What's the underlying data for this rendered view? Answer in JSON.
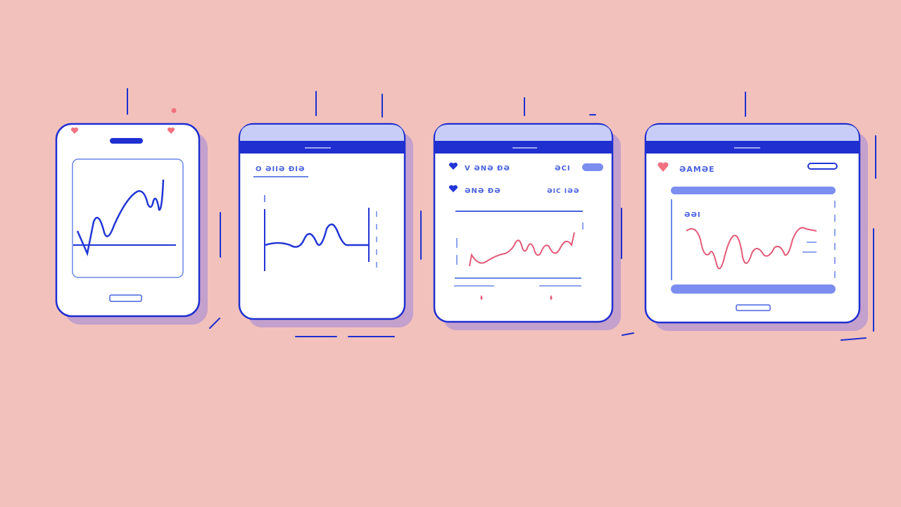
{
  "colors": {
    "background": "#f2c1bc",
    "outline": "#1f2fd0",
    "header_light": "#c8cdf7",
    "accent_light": "#7b8ef0",
    "shadow": "#c4a0cc",
    "line_blue": "#2236d6",
    "line_red": "#e35a78",
    "heart_red": "#f2727f"
  },
  "screen2": {
    "heading": "O ƏIIƏ ĐIƏ"
  },
  "screen3": {
    "row1_label": "V ƏNƏ ĐƏ",
    "row1_value": "ƏCI",
    "row2_label": "ƏNƏ ĐƏ",
    "row2_value": "ƏIC IƏƏ"
  },
  "screen4": {
    "heading": "ƏAMƏE",
    "chart_label": "ƏƏI"
  },
  "icons": [
    "heart-icon",
    "heart-icon",
    "heart-icon",
    "heart-icon",
    "heart-icon"
  ]
}
